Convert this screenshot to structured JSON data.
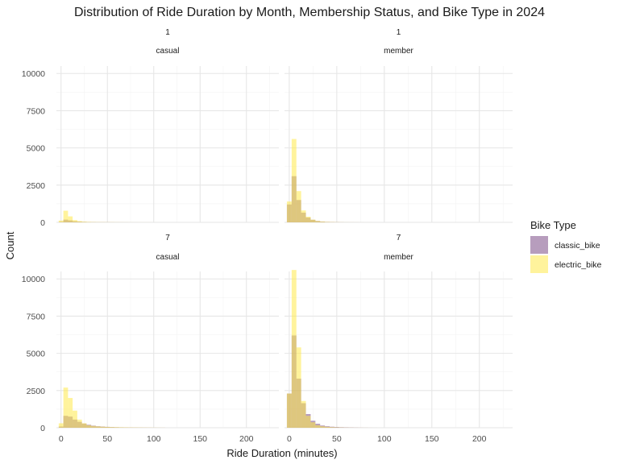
{
  "chart_data": {
    "type": "bar",
    "title": "Distribution of Ride Duration by Month, Membership Status, and Bike Type in 2024",
    "xlabel": "Ride Duration (minutes)",
    "ylabel": "Count",
    "xlim": [
      -5,
      235
    ],
    "ylim": [
      0,
      10500
    ],
    "x_ticks": [
      0,
      50,
      100,
      150,
      200
    ],
    "y_ticks": [
      0,
      2500,
      5000,
      7500,
      10000
    ],
    "grid": true,
    "legend": {
      "title": "Bike Type",
      "position": "right",
      "items": [
        {
          "name": "classic_bike",
          "color": "#7B4C86"
        },
        {
          "name": "electric_bike",
          "color": "#FFE94A"
        }
      ]
    },
    "bin_width": 5,
    "bin_centers": [
      0,
      5,
      10,
      15,
      20,
      25,
      30,
      35,
      40,
      45,
      50,
      55,
      60,
      65,
      70,
      75,
      80,
      85,
      90,
      95,
      100,
      105,
      110
    ],
    "facets": [
      {
        "month": "1",
        "membership": "casual",
        "series": [
          {
            "name": "classic_bike",
            "values": [
              30,
              180,
              130,
              70,
              45,
              30,
              20,
              15,
              10,
              10,
              8,
              6,
              5,
              4,
              3,
              2,
              2,
              1,
              1,
              1,
              0,
              0,
              0
            ]
          },
          {
            "name": "electric_bike",
            "values": [
              120,
              780,
              400,
              150,
              80,
              45,
              30,
              20,
              15,
              12,
              10,
              10,
              8,
              6,
              5,
              4,
              3,
              3,
              2,
              2,
              1,
              1,
              0
            ]
          }
        ]
      },
      {
        "month": "1",
        "membership": "member",
        "series": [
          {
            "name": "classic_bike",
            "values": [
              1200,
              3100,
              1500,
              650,
              320,
              170,
              90,
              50,
              30,
              20,
              12,
              8,
              5,
              4,
              3,
              2,
              1,
              1,
              0,
              0,
              0,
              0,
              0
            ]
          },
          {
            "name": "electric_bike",
            "values": [
              1400,
              5600,
              2100,
              800,
              380,
              180,
              90,
              50,
              30,
              20,
              12,
              8,
              5,
              4,
              3,
              2,
              1,
              1,
              0,
              0,
              0,
              0,
              0
            ]
          }
        ]
      },
      {
        "month": "7",
        "membership": "casual",
        "series": [
          {
            "name": "classic_bike",
            "values": [
              80,
              800,
              750,
              550,
              400,
              280,
              200,
              140,
              100,
              80,
              60,
              45,
              35,
              28,
              22,
              18,
              15,
              12,
              10,
              8,
              6,
              5,
              4
            ]
          },
          {
            "name": "electric_bike",
            "values": [
              300,
              2700,
              2000,
              1150,
              550,
              300,
              170,
              120,
              90,
              70,
              55,
              45,
              38,
              30,
              25,
              20,
              18,
              15,
              12,
              10,
              8,
              6,
              5
            ]
          }
        ]
      },
      {
        "month": "7",
        "membership": "member",
        "series": [
          {
            "name": "classic_bike",
            "values": [
              2300,
              6200,
              3300,
              1650,
              920,
              470,
              270,
              150,
              100,
              70,
              50,
              35,
              25,
              18,
              12,
              8,
              5,
              3,
              2,
              1,
              0,
              0,
              0
            ]
          },
          {
            "name": "electric_bike",
            "values": [
              2300,
              10600,
              5400,
              1800,
              800,
              370,
              170,
              100,
              60,
              40,
              25,
              15,
              10,
              8,
              5,
              4,
              3,
              2,
              1,
              1,
              0,
              0,
              0
            ]
          }
        ]
      }
    ]
  }
}
